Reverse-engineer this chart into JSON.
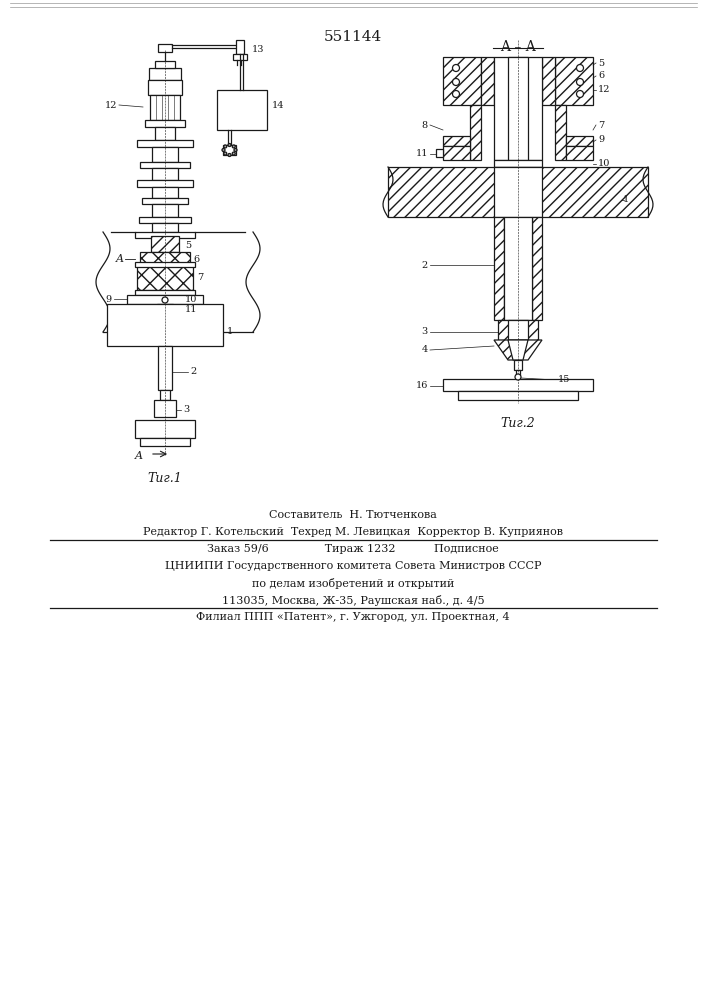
{
  "patent_number": "551144",
  "fig1_label": "Τиг.1",
  "fig2_label": "Τиг.2",
  "section_label": "A – A",
  "footer_line1": "Составитель  Н. Тютченкова",
  "footer_line2": "Редактор Г. Котельский  Техред М. Левицкая  Корректор В. Куприянов",
  "footer_line3": "Заказ 59/6                Тираж 1232           Подписное",
  "footer_line4": "ЦНИИПИ Государственного комитета Совета Министров СССР",
  "footer_line5": "по делам изобретений и открытий",
  "footer_line6": "113035, Москва, Ж-35, Раушская наб., д. 4/5",
  "footer_line7": "Филиал ППП «Патент», г. Ужгород, ул. Проектная, 4",
  "bg_color": "#ffffff",
  "line_color": "#1a1a1a"
}
